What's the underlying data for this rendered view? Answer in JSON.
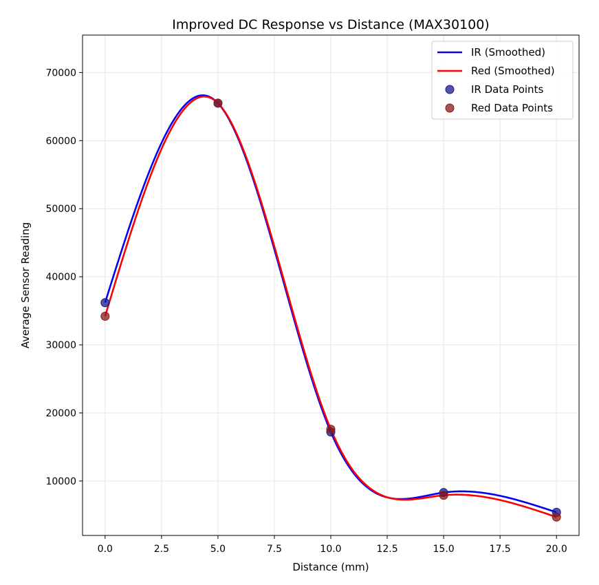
{
  "chart_data": {
    "type": "line",
    "title": "Improved DC Response vs Distance (MAX30100)",
    "xlabel": "Distance (mm)",
    "ylabel": "Average Sensor Reading",
    "xlim": [
      -1,
      21
    ],
    "ylim": [
      2000,
      75500
    ],
    "grid": true,
    "legend_position": "top-right",
    "x_ticks": [
      0,
      2.5,
      5,
      7.5,
      10,
      12.5,
      15,
      17.5,
      20
    ],
    "x_tick_labels": [
      "0.0",
      "2.5",
      "5.0",
      "7.5",
      "10.0",
      "12.5",
      "15.0",
      "17.5",
      "20.0"
    ],
    "y_ticks": [
      10000,
      20000,
      30000,
      40000,
      50000,
      60000,
      70000
    ],
    "y_tick_labels": [
      "10000",
      "20000",
      "30000",
      "40000",
      "50000",
      "60000",
      "70000"
    ],
    "series": [
      {
        "name": "IR (Smoothed)",
        "kind": "smoothed-line",
        "color": "#0000ff",
        "x": [
          0,
          5,
          10,
          15,
          20
        ],
        "y": [
          36200,
          65500,
          17200,
          8300,
          5400
        ]
      },
      {
        "name": "Red (Smoothed)",
        "kind": "smoothed-line",
        "color": "#ff0000",
        "x": [
          0,
          5,
          10,
          15,
          20
        ],
        "y": [
          34200,
          65500,
          17600,
          7900,
          4700
        ]
      },
      {
        "name": "IR Data Points",
        "kind": "scatter",
        "color": "#1a1a8c",
        "x": [
          0,
          5,
          10,
          15,
          20
        ],
        "y": [
          36200,
          65500,
          17200,
          8300,
          5400
        ]
      },
      {
        "name": "Red Data Points",
        "kind": "scatter",
        "color": "#8b1a1a",
        "x": [
          0,
          5,
          10,
          15,
          20
        ],
        "y": [
          34200,
          65500,
          17600,
          7900,
          4700
        ]
      }
    ]
  }
}
